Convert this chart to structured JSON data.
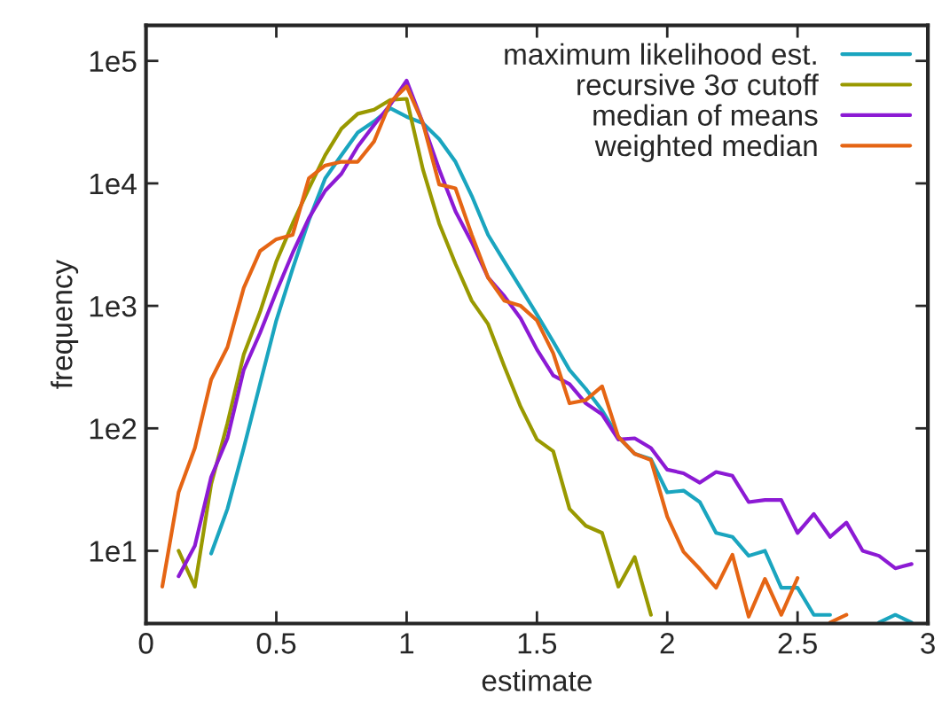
{
  "chart_data": {
    "type": "line",
    "xlabel": "estimate",
    "ylabel": "frequency",
    "x": [
      0.0625,
      0.125,
      0.1875,
      0.25,
      0.3125,
      0.375,
      0.4375,
      0.5,
      0.5625,
      0.625,
      0.6875,
      0.75,
      0.8125,
      0.875,
      0.9375,
      1.0,
      1.0625,
      1.125,
      1.1875,
      1.25,
      1.3125,
      1.375,
      1.4375,
      1.5,
      1.5625,
      1.625,
      1.6875,
      1.75,
      1.8125,
      1.875,
      1.9375,
      2.0,
      2.0625,
      2.125,
      2.1875,
      2.25,
      2.3125,
      2.375,
      2.4375,
      2.5,
      2.5625,
      2.625,
      2.6875,
      2.75,
      2.8125,
      2.875,
      2.9375
    ],
    "series": [
      {
        "name": "maximum likelihood est.",
        "color": "#1aa5bf",
        "values": [
          null,
          null,
          null,
          9.5,
          22,
          69,
          230,
          760,
          2000,
          5000,
          11000,
          17000,
          26000,
          32000,
          41000,
          35000,
          31000,
          23000,
          15000,
          7900,
          3800,
          2300,
          1400,
          850,
          510,
          300,
          210,
          140,
          85,
          62,
          56,
          30,
          31,
          25,
          14,
          13,
          9.1,
          10,
          5.0,
          5.0,
          3.0,
          3.0,
          null,
          null,
          2.6,
          3.0,
          2.6
        ]
      },
      {
        "name": "recursive 3σ cutoff",
        "color": "#999900",
        "values": [
          null,
          10,
          5.1,
          35,
          110,
          400,
          890,
          2300,
          4700,
          9100,
          17000,
          28000,
          37000,
          40000,
          48000,
          49000,
          13000,
          4700,
          2200,
          1100,
          710,
          320,
          150,
          81,
          65,
          22,
          16,
          14,
          5.1,
          8.9,
          3.0,
          null,
          null,
          null,
          null,
          null,
          null,
          null,
          null,
          null,
          null,
          null,
          null,
          null,
          null,
          null,
          null
        ]
      },
      {
        "name": "median of means",
        "color": "#8c1ad4",
        "values": [
          null,
          6.2,
          11,
          40,
          83,
          300,
          600,
          1300,
          2700,
          5200,
          8700,
          12000,
          20000,
          30000,
          44000,
          69000,
          31000,
          13000,
          5900,
          3300,
          1700,
          1200,
          790,
          440,
          270,
          230,
          160,
          130,
          81,
          83,
          69,
          46,
          43,
          36,
          44,
          41,
          25,
          26,
          26,
          14,
          20,
          13,
          17,
          10,
          9.1,
          7.2,
          7.8
        ]
      },
      {
        "name": "weighted median",
        "color": "#e56514",
        "values": [
          5.1,
          30,
          69,
          250,
          460,
          1400,
          2800,
          3500,
          3800,
          11000,
          14000,
          15000,
          15000,
          22000,
          46000,
          62000,
          31000,
          9800,
          9100,
          3800,
          1700,
          1100,
          1000,
          760,
          410,
          160,
          170,
          220,
          85,
          62,
          55,
          19,
          9.8,
          7.1,
          5.0,
          9.3,
          2.9,
          5.9,
          3.0,
          6.0,
          null,
          2.6,
          3.0,
          null,
          null,
          null,
          null
        ]
      }
    ],
    "log": "y",
    "xlim": [
      0,
      3
    ],
    "ylim": [
      2.55,
      195000
    ],
    "xticks": [
      0,
      0.5,
      1,
      1.5,
      2,
      2.5,
      3
    ],
    "yticks": [
      {
        "value": 10,
        "label": "1e1"
      },
      {
        "value": 100,
        "label": "1e2"
      },
      {
        "value": 1000,
        "label": "1e3"
      },
      {
        "value": 10000,
        "label": "1e4"
      },
      {
        "value": 100000,
        "label": "1e5"
      }
    ],
    "legend": "top right",
    "grid": false
  }
}
